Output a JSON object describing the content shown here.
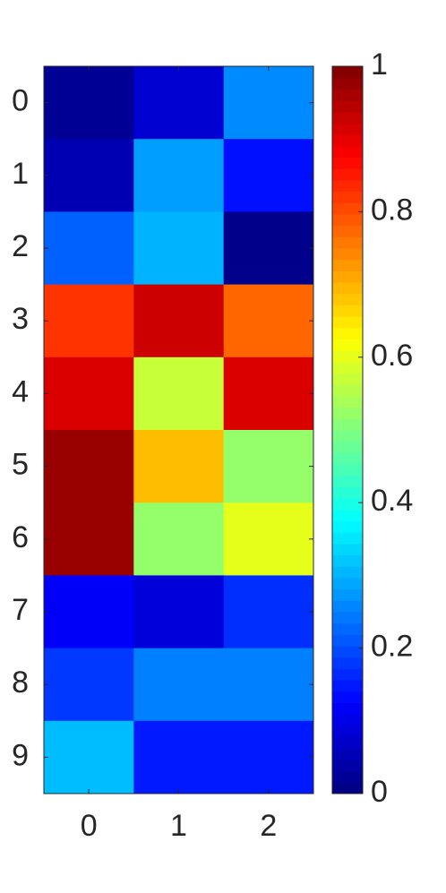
{
  "chart_data": {
    "type": "heatmap",
    "colormap": "jet",
    "x_categories": [
      0,
      1,
      2
    ],
    "y_categories": [
      0,
      1,
      2,
      3,
      4,
      5,
      6,
      7,
      8,
      9
    ],
    "values": [
      [
        0.02,
        0.08,
        0.26
      ],
      [
        0.05,
        0.28,
        0.14
      ],
      [
        0.22,
        0.3,
        0.01
      ],
      [
        0.825,
        0.925,
        0.775
      ],
      [
        0.91,
        0.57,
        0.91
      ],
      [
        0.975,
        0.69,
        0.52
      ],
      [
        0.975,
        0.52,
        0.6
      ],
      [
        0.12,
        0.09,
        0.17
      ],
      [
        0.18,
        0.25,
        0.25
      ],
      [
        0.31,
        0.15,
        0.15
      ]
    ],
    "colorbar": {
      "ylim": [
        0,
        1
      ],
      "yticks": [
        0,
        0.2,
        0.4,
        0.6,
        0.8,
        1
      ]
    }
  }
}
